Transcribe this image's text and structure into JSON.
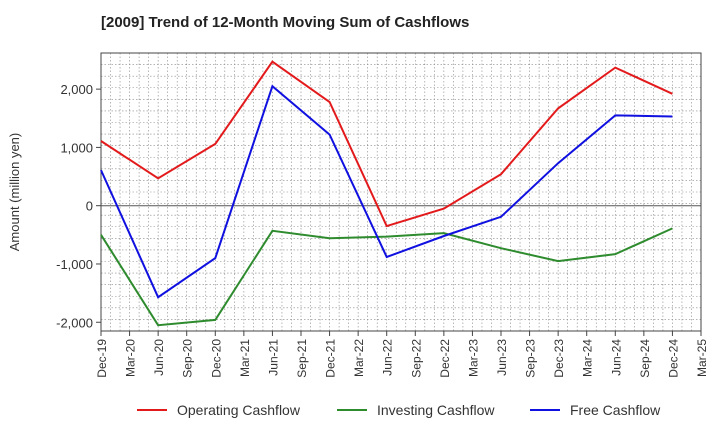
{
  "chart_data": {
    "type": "line",
    "title": "[2009]  Trend of 12-Month Moving Sum of Cashflows",
    "ylabel": "Amount (million yen)",
    "xlabel": "",
    "x": [
      "Dec-19",
      "Mar-20",
      "Jun-20",
      "Sep-20",
      "Dec-20",
      "Mar-21",
      "Jun-21",
      "Sep-21",
      "Dec-21",
      "Mar-22",
      "Jun-22",
      "Sep-22",
      "Dec-22",
      "Mar-23",
      "Jun-23",
      "Sep-23",
      "Dec-23",
      "Mar-24",
      "Jun-24",
      "Sep-24",
      "Dec-24",
      "Mar-25"
    ],
    "ylim": [
      -2150,
      2620
    ],
    "yticks": [
      -2000,
      -1000,
      0,
      1000,
      2000
    ],
    "ytick_labels": [
      "-2,000",
      "-1,000",
      "0",
      "1,000",
      "2,000"
    ],
    "grid": true,
    "legend_position": "bottom",
    "series": [
      {
        "name": "Operating Cashflow",
        "color": "#e31a1c",
        "values": [
          1110,
          null,
          470,
          null,
          1060,
          null,
          2470,
          null,
          1780,
          null,
          -350,
          null,
          -50,
          null,
          540,
          null,
          1670,
          null,
          2370,
          null,
          1920,
          null
        ]
      },
      {
        "name": "Investing Cashflow",
        "color": "#2e8b2e",
        "values": [
          -500,
          null,
          -2050,
          null,
          -1960,
          null,
          -430,
          null,
          -560,
          null,
          -530,
          null,
          -470,
          null,
          -730,
          null,
          -950,
          null,
          -830,
          null,
          -390,
          null
        ]
      },
      {
        "name": "Free Cashflow",
        "color": "#1010e0",
        "values": [
          610,
          null,
          -1570,
          null,
          -900,
          null,
          2050,
          null,
          1220,
          null,
          -880,
          null,
          -520,
          null,
          -190,
          null,
          730,
          null,
          1550,
          null,
          1530,
          null
        ]
      }
    ]
  }
}
